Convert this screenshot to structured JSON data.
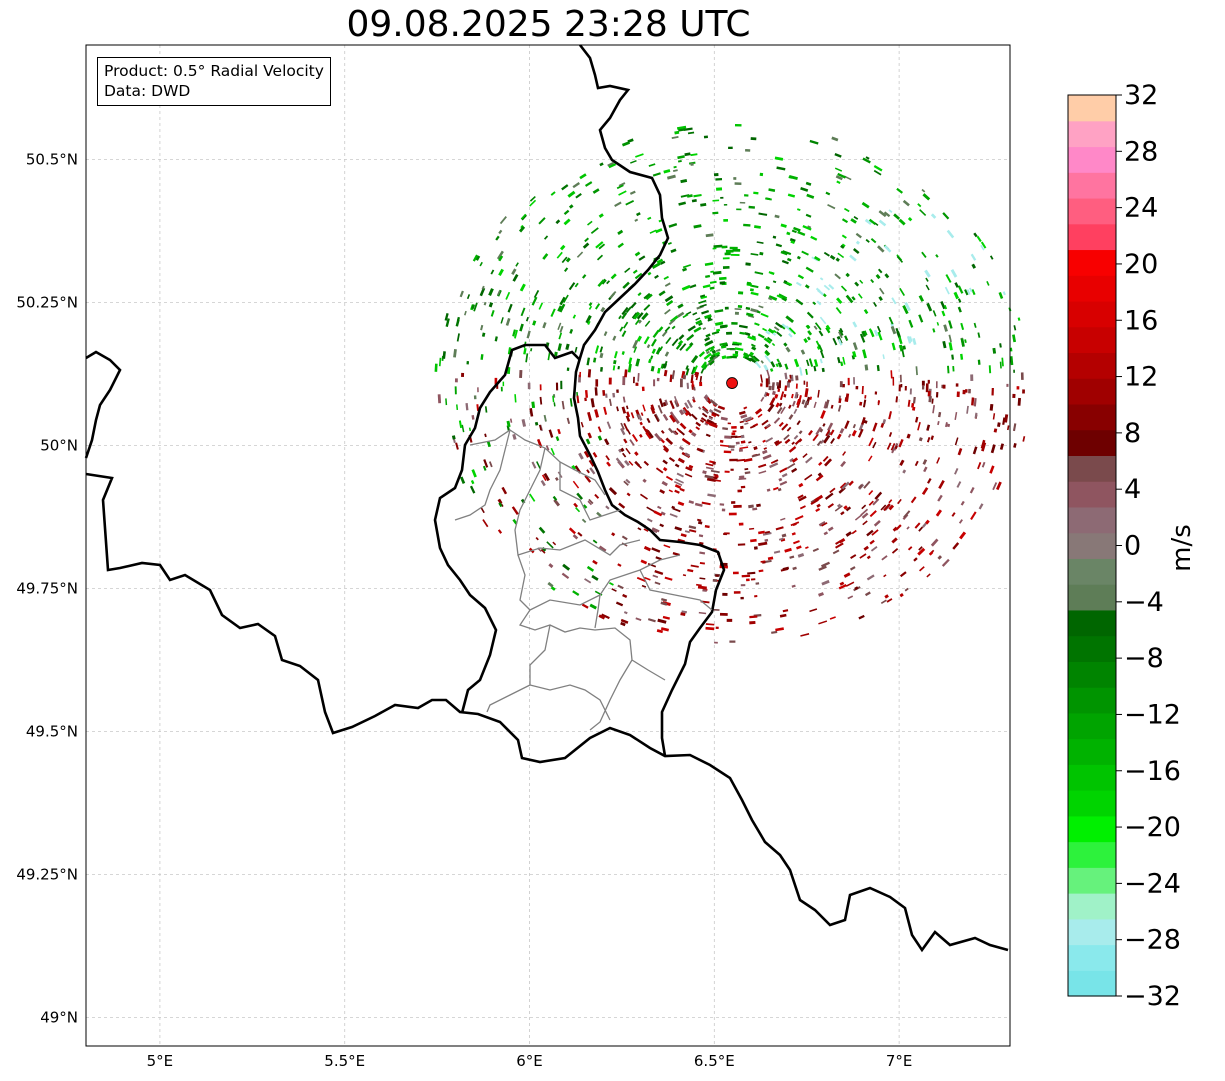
{
  "title": "09.08.2025 23:28 UTC",
  "info": {
    "product": "Product: 0.5° Radial Velocity",
    "data": "Data: DWD"
  },
  "map": {
    "lon_range": [
      4.8,
      7.3
    ],
    "lat_range": [
      48.95,
      50.7
    ],
    "lon_ticks": [
      {
        "value": 5.0,
        "label": "5°E"
      },
      {
        "value": 5.5,
        "label": "5.5°E"
      },
      {
        "value": 6.0,
        "label": "6°E"
      },
      {
        "value": 6.5,
        "label": "6.5°E"
      },
      {
        "value": 7.0,
        "label": "7°E"
      }
    ],
    "lat_ticks": [
      {
        "value": 49.0,
        "label": "49°N"
      },
      {
        "value": 49.25,
        "label": "49.25°N"
      },
      {
        "value": 49.5,
        "label": "49.5°N"
      },
      {
        "value": 49.75,
        "label": "49.75°N"
      },
      {
        "value": 50.0,
        "label": "50°N"
      },
      {
        "value": 50.25,
        "label": "50.25°N"
      },
      {
        "value": 50.5,
        "label": "50.5°N"
      }
    ],
    "radar_site": {
      "lon": 6.548,
      "lat": 50.109
    },
    "grid": true
  },
  "colorbar": {
    "label": "m/s",
    "vmin": -32,
    "vmax": 32,
    "ticks": [
      {
        "value": 32,
        "label": "32"
      },
      {
        "value": 28,
        "label": "28"
      },
      {
        "value": 24,
        "label": "24"
      },
      {
        "value": 20,
        "label": "20"
      },
      {
        "value": 16,
        "label": "16"
      },
      {
        "value": 12,
        "label": "12"
      },
      {
        "value": 8,
        "label": "8"
      },
      {
        "value": 4,
        "label": "4"
      },
      {
        "value": 0,
        "label": "0"
      },
      {
        "value": -4,
        "label": "−4"
      },
      {
        "value": -8,
        "label": "−8"
      },
      {
        "value": -12,
        "label": "−12"
      },
      {
        "value": -16,
        "label": "−16"
      },
      {
        "value": -20,
        "label": "−20"
      },
      {
        "value": -24,
        "label": "−24"
      },
      {
        "value": -28,
        "label": "−28"
      },
      {
        "value": -32,
        "label": "−32"
      }
    ],
    "colors": [
      "#78e4e8",
      "#8ae9ec",
      "#a8ecec",
      "#a0f2c8",
      "#66f27c",
      "#2df23c",
      "#00f000",
      "#00d400",
      "#00c400",
      "#00b200",
      "#00a400",
      "#009400",
      "#008400",
      "#007400",
      "#006600",
      "#5e7d57",
      "#6a8566",
      "#887877",
      "#8d6a74",
      "#8f5560",
      "#7a4a4c",
      "#6e0000",
      "#880000",
      "#a00000",
      "#b40000",
      "#c80000",
      "#d80000",
      "#e80000",
      "#f80000",
      "#ff4060",
      "#ff5e80",
      "#ff74a0",
      "#ff88c8",
      "#ffa2c4",
      "#ffcda8"
    ]
  },
  "colors": {
    "border_country": "#000000",
    "border_district": "#808080",
    "grid": "#c8c8c8",
    "radar_marker": "#ee1111"
  }
}
